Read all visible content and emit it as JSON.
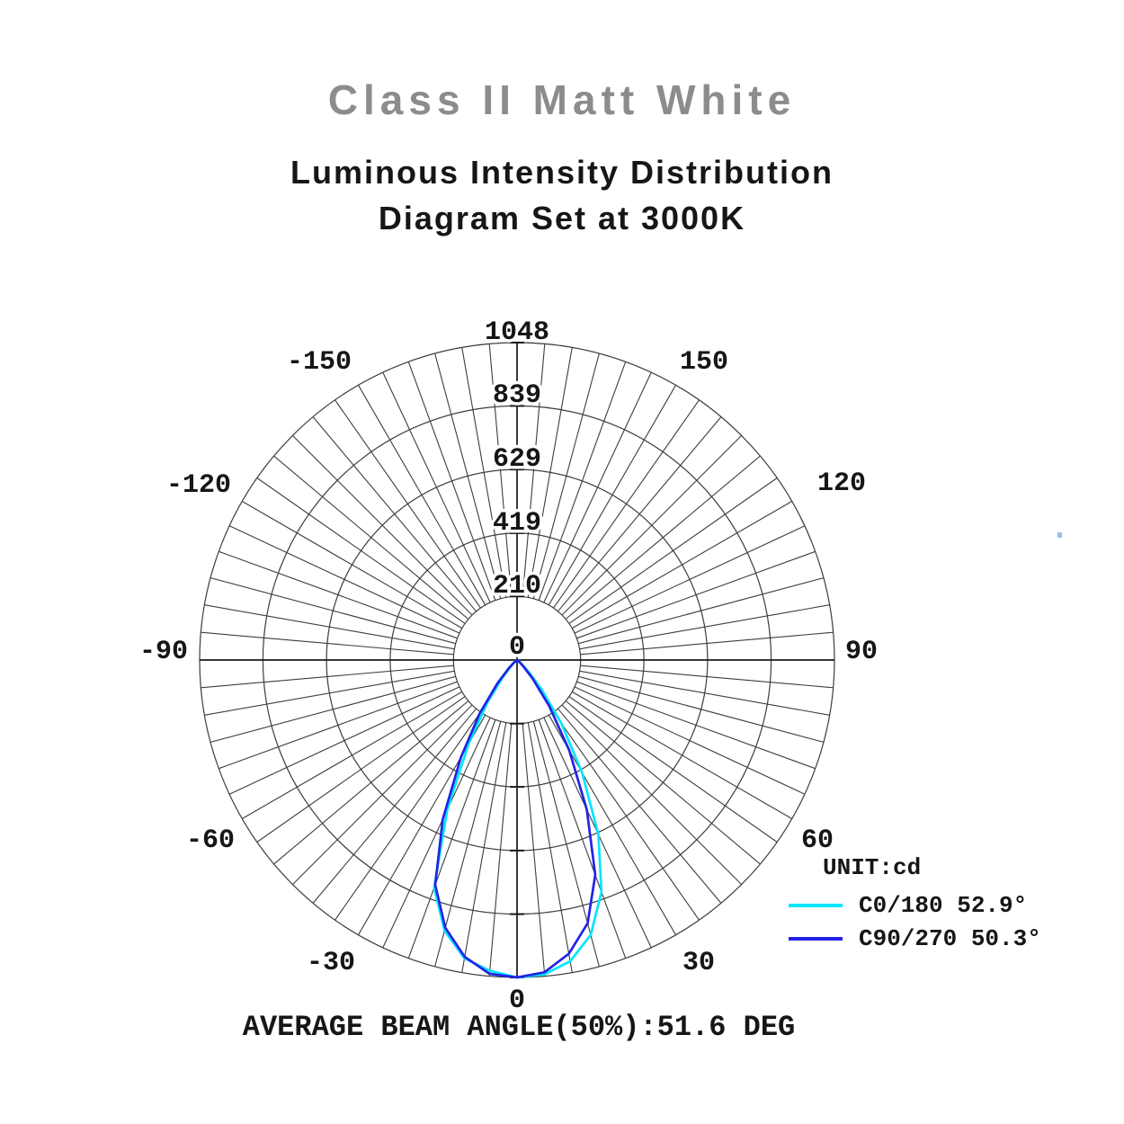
{
  "header": {
    "title": "Class II Matt White",
    "title_color": "#8c8c8c",
    "subtitle_line1": "Luminous Intensity Distribution",
    "subtitle_line2": "Diagram Set at 3000K"
  },
  "legend": {
    "unit": "UNIT:cd",
    "entries": [
      {
        "label": "C0/180 52.9°",
        "color": "#00e6ff"
      },
      {
        "label": "C90/270 50.3°",
        "color": "#2222e6"
      }
    ]
  },
  "chart_data": {
    "type": "line",
    "subtype": "polar-luminous-intensity",
    "unit": "cd",
    "radial_ticks": [
      210,
      419,
      629,
      839,
      1048
    ],
    "radial_max": 1048,
    "center_label": "0",
    "angle_labels": [
      -150,
      -120,
      -90,
      -60,
      -30,
      0,
      30,
      60,
      90,
      120,
      150
    ],
    "spoke_step_deg": 5,
    "grid_on": true,
    "legend_position": "right-bottom",
    "series": [
      {
        "name": "C0/180 52.9°",
        "color": "#00e6ff",
        "angles_deg": [
          -60,
          -55,
          -50,
          -45,
          -40,
          -35,
          -30,
          -25,
          -20,
          -15,
          -10,
          -5,
          0,
          5,
          10,
          15,
          20,
          25,
          30,
          35,
          40,
          45,
          50,
          55,
          60
        ],
        "intensity_cd": [
          0,
          2,
          8,
          25,
          70,
          170,
          320,
          545,
          800,
          925,
          1000,
          1030,
          1048,
          1042,
          1010,
          940,
          815,
          635,
          430,
          255,
          125,
          50,
          18,
          6,
          0
        ]
      },
      {
        "name": "C90/270 50.3°",
        "color": "#2222e6",
        "angles_deg": [
          -60,
          -55,
          -50,
          -45,
          -40,
          -35,
          -30,
          -25,
          -20,
          -15,
          -10,
          -5,
          0,
          5,
          10,
          15,
          20,
          25,
          30,
          35,
          40,
          45,
          50,
          55,
          60
        ],
        "intensity_cd": [
          0,
          3,
          12,
          38,
          100,
          215,
          370,
          580,
          790,
          915,
          995,
          1040,
          1048,
          1035,
          985,
          900,
          755,
          545,
          345,
          185,
          80,
          28,
          10,
          3,
          0
        ]
      }
    ],
    "caption": "AVERAGE BEAM ANGLE(50%):51.6 DEG",
    "grid_color": "#3d3d3d",
    "axis_color": "#1a1a1a",
    "label_color": "#161616"
  }
}
